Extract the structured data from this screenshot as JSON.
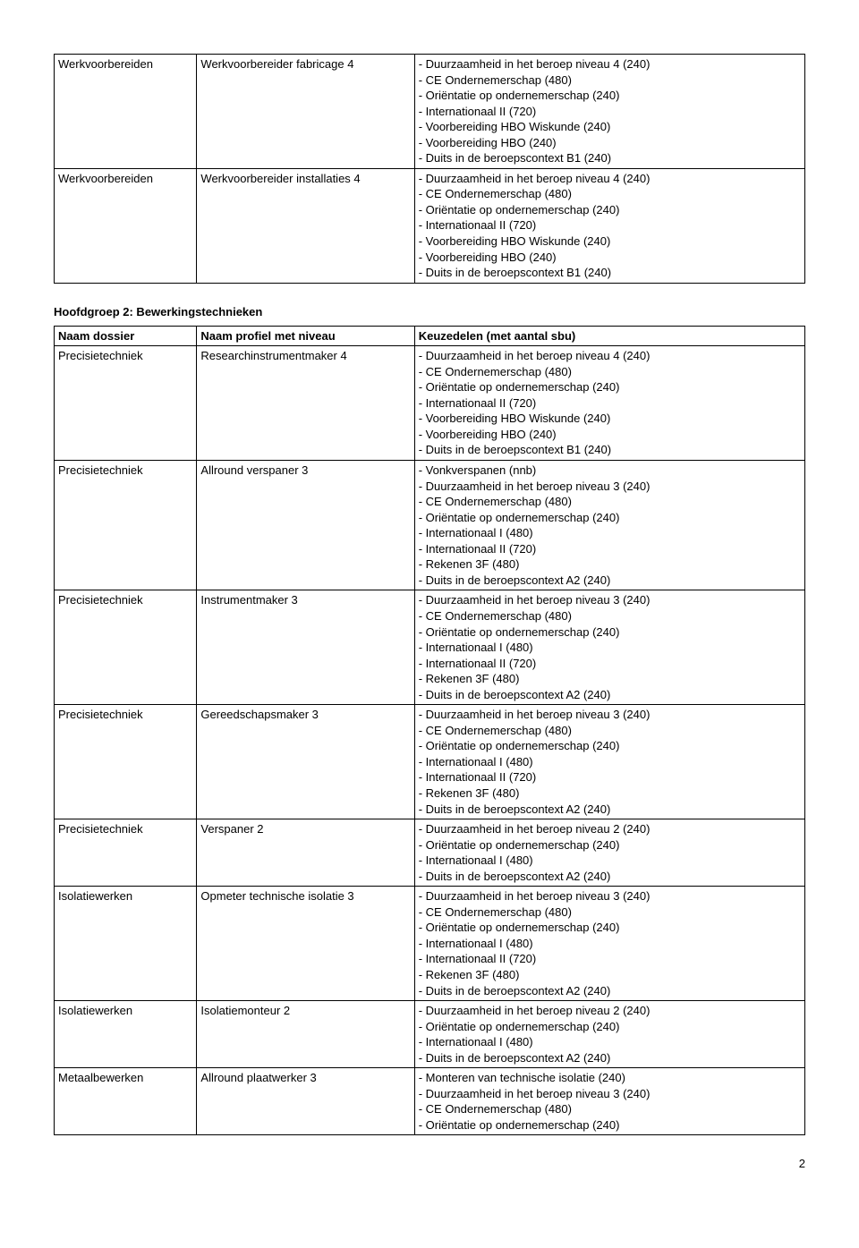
{
  "table1": {
    "rows": [
      {
        "dossier": "Werkvoorbereiden",
        "profiel": "Werkvoorbereider fabricage 4",
        "keuze": [
          "- Duurzaamheid in het beroep niveau 4 (240)",
          "- CE Ondernemerschap (480)",
          "- Oriëntatie op ondernemerschap (240)",
          "- Internationaal II (720)",
          "- Voorbereiding HBO Wiskunde (240)",
          "- Voorbereiding HBO (240)",
          "- Duits in de beroepscontext B1 (240)"
        ]
      },
      {
        "dossier": "Werkvoorbereiden",
        "profiel": "Werkvoorbereider installaties 4",
        "keuze": [
          "- Duurzaamheid in het beroep niveau 4 (240)",
          "- CE Ondernemerschap (480)",
          "- Oriëntatie op ondernemerschap (240)",
          "- Internationaal II (720)",
          "- Voorbereiding HBO Wiskunde (240)",
          "- Voorbereiding HBO (240)",
          "- Duits in de beroepscontext B1 (240)"
        ]
      }
    ]
  },
  "section_title": "Hoofdgroep 2: Bewerkingstechnieken",
  "table2": {
    "headers": {
      "dossier": "Naam dossier",
      "profiel": "Naam profiel met niveau",
      "keuze": "Keuzedelen (met aantal sbu)"
    },
    "rows": [
      {
        "dossier": "Precisietechniek",
        "profiel": "Researchinstrumentmaker 4",
        "keuze": [
          "- Duurzaamheid in het beroep niveau 4 (240)",
          "- CE Ondernemerschap (480)",
          "- Oriëntatie op ondernemerschap (240)",
          "- Internationaal II (720)",
          "- Voorbereiding HBO Wiskunde (240)",
          "- Voorbereiding HBO (240)",
          "- Duits in de beroepscontext B1 (240)"
        ]
      },
      {
        "dossier": "Precisietechniek",
        "profiel": "Allround verspaner 3",
        "keuze": [
          "- Vonkverspanen (nnb)",
          "- Duurzaamheid in het beroep niveau 3 (240)",
          "- CE Ondernemerschap (480)",
          "- Oriëntatie op ondernemerschap (240)",
          "- Internationaal I (480)",
          "- Internationaal II (720)",
          "- Rekenen 3F (480)",
          "- Duits in de beroepscontext A2 (240)"
        ]
      },
      {
        "dossier": "Precisietechniek",
        "profiel": "Instrumentmaker 3",
        "keuze": [
          "- Duurzaamheid in het beroep niveau 3 (240)",
          "- CE Ondernemerschap (480)",
          "- Oriëntatie op ondernemerschap (240)",
          "- Internationaal I (480)",
          "- Internationaal II (720)",
          "- Rekenen 3F (480)",
          "- Duits in de beroepscontext A2 (240)"
        ]
      },
      {
        "dossier": "Precisietechniek",
        "profiel": "Gereedschapsmaker 3",
        "keuze": [
          "- Duurzaamheid in het beroep niveau 3 (240)",
          "- CE Ondernemerschap (480)",
          "- Oriëntatie op ondernemerschap (240)",
          "- Internationaal I (480)",
          "- Internationaal II (720)",
          "- Rekenen 3F (480)",
          "- Duits in de beroepscontext A2 (240)"
        ]
      },
      {
        "dossier": "Precisietechniek",
        "profiel": "Verspaner 2",
        "keuze": [
          "- Duurzaamheid in het beroep niveau 2 (240)",
          "- Oriëntatie op ondernemerschap (240)",
          "- Internationaal I (480)",
          "- Duits in de beroepscontext A2 (240)"
        ]
      },
      {
        "dossier": "Isolatiewerken",
        "profiel": "Opmeter technische isolatie 3",
        "keuze": [
          "- Duurzaamheid in het beroep niveau 3 (240)",
          "- CE Ondernemerschap (480)",
          "- Oriëntatie op ondernemerschap (240)",
          "- Internationaal I (480)",
          "- Internationaal II (720)",
          "- Rekenen 3F (480)",
          "- Duits in de beroepscontext A2 (240)"
        ]
      },
      {
        "dossier": "Isolatiewerken",
        "profiel": "Isolatiemonteur 2",
        "keuze": [
          "- Duurzaamheid in het beroep niveau 2 (240)",
          "- Oriëntatie op ondernemerschap (240)",
          "- Internationaal I (480)",
          "- Duits in de beroepscontext A2 (240)"
        ]
      },
      {
        "dossier": "Metaalbewerken",
        "profiel": "Allround plaatwerker 3",
        "keuze": [
          "- Monteren van technische isolatie (240)",
          "- Duurzaamheid in het beroep niveau 3 (240)",
          "- CE Ondernemerschap (480)",
          "- Oriëntatie op ondernemerschap (240)"
        ]
      }
    ]
  },
  "page_number": "2"
}
